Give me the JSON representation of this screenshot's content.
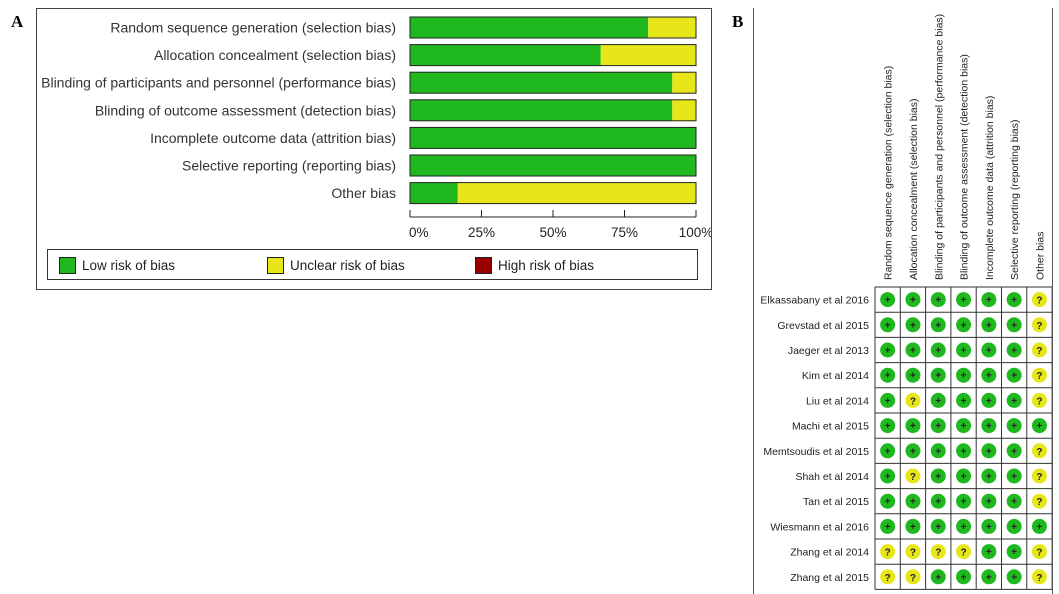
{
  "panel_labels": {
    "a": "A",
    "b": "B"
  },
  "colors": {
    "low": "#1fb81f",
    "unclear": "#e6e619",
    "high": "#9b0000"
  },
  "legend": [
    {
      "label": "Low risk of bias",
      "color": "#1fb81f"
    },
    {
      "label": "Unclear risk of bias",
      "color": "#e6e619"
    },
    {
      "label": "High risk of bias",
      "color": "#9b0000"
    }
  ],
  "chart_data": [
    {
      "type": "bar",
      "orientation": "horizontal",
      "stacked": true,
      "categories": [
        "Random sequence generation (selection bias)",
        "Allocation concealment (selection bias)",
        "Blinding of participants and personnel (performance bias)",
        "Blinding of outcome assessment (detection bias)",
        "Incomplete outcome data (attrition bias)",
        "Selective reporting (reporting bias)",
        "Other bias"
      ],
      "series": [
        {
          "name": "Low risk of bias",
          "values": [
            83.3,
            66.7,
            91.7,
            91.7,
            100,
            100,
            16.7
          ]
        },
        {
          "name": "Unclear risk of bias",
          "values": [
            16.7,
            33.3,
            8.3,
            8.3,
            0,
            0,
            83.3
          ]
        },
        {
          "name": "High risk of bias",
          "values": [
            0,
            0,
            0,
            0,
            0,
            0,
            0
          ]
        }
      ],
      "xlim": [
        0,
        100
      ],
      "x_ticks": [
        "0%",
        "25%",
        "50%",
        "75%",
        "100%"
      ],
      "legend_position": "bottom"
    },
    {
      "type": "table",
      "columns": [
        "Random sequence generation (selection bias)",
        "Allocation concealment (selection bias)",
        "Blinding of participants and personnel (performance bias)",
        "Blinding of outcome assessment (detection bias)",
        "Incomplete outcome data (attrition bias)",
        "Selective reporting (reporting bias)",
        "Other bias"
      ],
      "rows": [
        {
          "study": "Elkassabany et al 2016",
          "ratings": [
            "+",
            "+",
            "+",
            "+",
            "+",
            "+",
            "?"
          ]
        },
        {
          "study": "Grevstad et al 2015",
          "ratings": [
            "+",
            "+",
            "+",
            "+",
            "+",
            "+",
            "?"
          ]
        },
        {
          "study": "Jaeger et al 2013",
          "ratings": [
            "+",
            "+",
            "+",
            "+",
            "+",
            "+",
            "?"
          ]
        },
        {
          "study": "Kim et al 2014",
          "ratings": [
            "+",
            "+",
            "+",
            "+",
            "+",
            "+",
            "?"
          ]
        },
        {
          "study": "Liu et al 2014",
          "ratings": [
            "+",
            "?",
            "+",
            "+",
            "+",
            "+",
            "?"
          ]
        },
        {
          "study": "Machi et al 2015",
          "ratings": [
            "+",
            "+",
            "+",
            "+",
            "+",
            "+",
            "+"
          ]
        },
        {
          "study": "Memtsoudis et al 2015",
          "ratings": [
            "+",
            "+",
            "+",
            "+",
            "+",
            "+",
            "?"
          ]
        },
        {
          "study": "Shah et al 2014",
          "ratings": [
            "+",
            "?",
            "+",
            "+",
            "+",
            "+",
            "?"
          ]
        },
        {
          "study": "Tan et al 2015",
          "ratings": [
            "+",
            "+",
            "+",
            "+",
            "+",
            "+",
            "?"
          ]
        },
        {
          "study": "Wiesmann et al 2016",
          "ratings": [
            "+",
            "+",
            "+",
            "+",
            "+",
            "+",
            "+"
          ]
        },
        {
          "study": "Zhang et al 2014",
          "ratings": [
            "?",
            "?",
            "?",
            "?",
            "+",
            "+",
            "?"
          ]
        },
        {
          "study": "Zhang et al 2015",
          "ratings": [
            "?",
            "?",
            "+",
            "+",
            "+",
            "+",
            "?"
          ]
        }
      ]
    }
  ]
}
